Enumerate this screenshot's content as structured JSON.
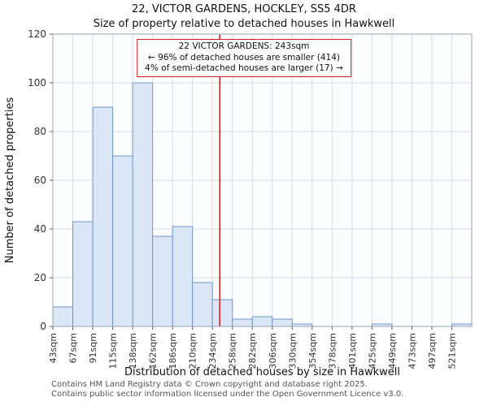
{
  "chart_data": {
    "type": "bar",
    "title": "22, VICTOR GARDENS, HOCKLEY, SS5 4DR",
    "subtitle": "Size of property relative to detached houses in Hawkwell",
    "categories": [
      "43sqm",
      "67sqm",
      "91sqm",
      "115sqm",
      "138sqm",
      "162sqm",
      "186sqm",
      "210sqm",
      "234sqm",
      "258sqm",
      "282sqm",
      "306sqm",
      "330sqm",
      "354sqm",
      "378sqm",
      "401sqm",
      "425sqm",
      "449sqm",
      "473sqm",
      "497sqm",
      "521sqm"
    ],
    "values": [
      8,
      43,
      90,
      70,
      100,
      37,
      41,
      18,
      11,
      3,
      4,
      3,
      1,
      0,
      0,
      0,
      1,
      0,
      0,
      0,
      1
    ],
    "xlabel": "Distribution of detached houses by size in Hawkwell",
    "ylabel": "Number of detached properties",
    "ylim": [
      0,
      120
    ],
    "yticks": [
      0,
      20,
      40,
      60,
      80,
      100,
      120
    ],
    "x_domain_sqm": [
      43,
      545
    ],
    "grid": true,
    "legend": "none",
    "plot_bg": "#fcfdff",
    "grid_color": "#d6dce8",
    "bar_fill": "#dbe7f7",
    "bar_stroke": "#6e96c8",
    "axis_color": "#9aa2b0",
    "tick_text_color": "#333333",
    "marker": {
      "value_sqm": 243,
      "color": "#cc2020",
      "label_lines": [
        "22 VICTOR GARDENS: 243sqm",
        "← 96% of detached houses are smaller (414)",
        "4% of semi-detached houses are larger (17) →"
      ]
    }
  },
  "footer": {
    "line1": "Contains HM Land Registry data © Crown copyright and database right 2025.",
    "line2": "Contains public sector information licensed under the Open Government Licence v3.0."
  }
}
